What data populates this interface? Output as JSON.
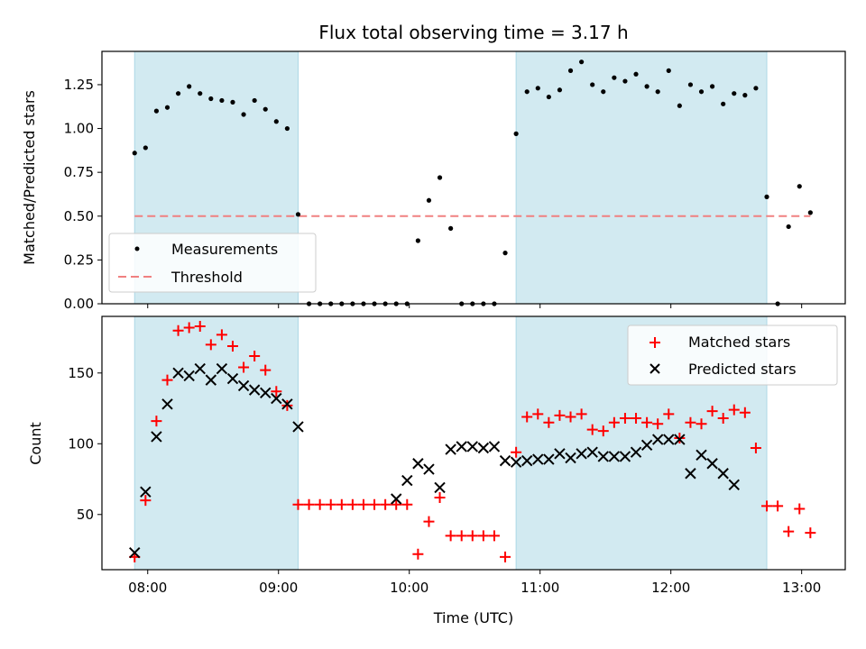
{
  "chart_data": [
    {
      "type": "scatter",
      "title": "Flux total observing time = 3.17 h",
      "xlabel": "",
      "ylabel": "Matched/Predicted stars",
      "ylim": [
        0,
        1.44
      ],
      "yticks": [
        "0.00",
        "0.25",
        "0.50",
        "0.75",
        "1.00",
        "1.25"
      ],
      "threshold": 0.5,
      "legend": {
        "placement": "lower-left",
        "entries": [
          "Measurements",
          "Threshold"
        ]
      },
      "colors": {
        "measurements": "#000000",
        "threshold": "#f08080",
        "shade": "#add8e6"
      },
      "series": [
        {
          "name": "Measurements",
          "x": [
            "07:54",
            "07:59",
            "08:04",
            "08:09",
            "08:14",
            "08:19",
            "08:24",
            "08:29",
            "08:34",
            "08:39",
            "08:44",
            "08:49",
            "08:54",
            "08:59",
            "09:04",
            "09:09",
            "09:14",
            "09:19",
            "09:24",
            "09:29",
            "09:34",
            "09:39",
            "09:44",
            "09:49",
            "09:54",
            "09:59",
            "10:04",
            "10:09",
            "10:14",
            "10:19",
            "10:24",
            "10:29",
            "10:34",
            "10:39",
            "10:44",
            "10:49",
            "10:54",
            "10:59",
            "11:04",
            "11:09",
            "11:14",
            "11:19",
            "11:24",
            "11:29",
            "11:34",
            "11:39",
            "11:44",
            "11:49",
            "11:54",
            "11:59",
            "12:04",
            "12:09",
            "12:14",
            "12:19",
            "12:24",
            "12:29",
            "12:34",
            "12:39",
            "12:44",
            "12:49",
            "12:54",
            "12:59",
            "13:04"
          ],
          "values": [
            0.86,
            0.89,
            1.1,
            1.12,
            1.2,
            1.24,
            1.2,
            1.17,
            1.16,
            1.15,
            1.08,
            1.16,
            1.11,
            1.04,
            1.0,
            0.51,
            0,
            0,
            0,
            0,
            0,
            0,
            0,
            0,
            0,
            0,
            0.36,
            0.59,
            0.72,
            0.43,
            0,
            0,
            0,
            0,
            0.29,
            0.97,
            1.21,
            1.23,
            1.18,
            1.22,
            1.33,
            1.38,
            1.25,
            1.21,
            1.29,
            1.27,
            1.31,
            1.24,
            1.21,
            1.33,
            1.13,
            1.25,
            1.21,
            1.24,
            1.14,
            1.2,
            1.19,
            1.23,
            0.61,
            0.0,
            0.44,
            0.67,
            0.52
          ]
        }
      ]
    },
    {
      "type": "scatter",
      "title": "",
      "xlabel": "Time (UTC)",
      "ylabel": "Count",
      "ylim": [
        11,
        190
      ],
      "yticks": [
        "50",
        "100",
        "150"
      ],
      "xticks": [
        "08:00",
        "09:00",
        "10:00",
        "11:00",
        "12:00",
        "13:00"
      ],
      "legend": {
        "placement": "top-right",
        "entries": [
          "Matched stars",
          "Predicted stars"
        ]
      },
      "colors": {
        "matched": "#ff0000",
        "predicted": "#000000",
        "shade": "#add8e6"
      },
      "series": [
        {
          "name": "Matched stars",
          "x": [
            "07:54",
            "07:59",
            "08:04",
            "08:09",
            "08:14",
            "08:19",
            "08:24",
            "08:29",
            "08:34",
            "08:39",
            "08:44",
            "08:49",
            "08:54",
            "08:59",
            "09:04",
            "09:09",
            "09:14",
            "09:19",
            "09:24",
            "09:29",
            "09:34",
            "09:39",
            "09:44",
            "09:49",
            "09:54",
            "09:59",
            "10:04",
            "10:09",
            "10:14",
            "10:19",
            "10:24",
            "10:29",
            "10:34",
            "10:39",
            "10:44",
            "10:49",
            "10:54",
            "10:59",
            "11:04",
            "11:09",
            "11:14",
            "11:19",
            "11:24",
            "11:29",
            "11:34",
            "11:39",
            "11:44",
            "11:49",
            "11:54",
            "11:59",
            "12:04",
            "12:09",
            "12:14",
            "12:19",
            "12:24",
            "12:29",
            "12:34",
            "12:39",
            "12:44",
            "12:49",
            "12:54",
            "12:59",
            "13:04"
          ],
          "values": [
            20,
            60,
            116,
            145,
            180,
            182,
            183,
            170,
            177,
            169,
            154,
            162,
            152,
            137,
            127,
            57,
            57,
            57,
            57,
            57,
            57,
            57,
            57,
            57,
            57,
            57,
            22,
            45,
            62,
            35,
            35,
            35,
            35,
            35,
            20,
            94,
            119,
            121,
            115,
            120,
            119,
            121,
            110,
            109,
            115,
            118,
            118,
            115,
            114,
            121,
            104,
            115,
            114,
            123,
            118,
            124,
            122,
            97,
            56,
            56,
            38,
            54,
            37
          ]
        },
        {
          "name": "Predicted stars",
          "x": [
            "07:54",
            "07:59",
            "08:04",
            "08:09",
            "08:14",
            "08:19",
            "08:24",
            "08:29",
            "08:34",
            "08:39",
            "08:44",
            "08:49",
            "08:54",
            "08:59",
            "09:04",
            "09:09",
            "09:54",
            "09:59",
            "10:04",
            "10:09",
            "10:14",
            "10:19",
            "10:24",
            "10:29",
            "10:34",
            "10:39",
            "10:44",
            "10:49",
            "10:54",
            "10:59",
            "11:04",
            "11:09",
            "11:14",
            "11:19",
            "11:24",
            "11:29",
            "11:34",
            "11:39",
            "11:44",
            "11:49",
            "11:54",
            "11:59",
            "12:04",
            "12:09",
            "12:14",
            "12:19",
            "12:24",
            "12:29",
            "12:34",
            "12:39",
            "12:44",
            "12:49",
            "12:54",
            "12:59",
            "13:04"
          ],
          "values": [
            23,
            66,
            105,
            128,
            150,
            148,
            153,
            145,
            153,
            146,
            141,
            138,
            136,
            132,
            128,
            112,
            61,
            74,
            86,
            82,
            69,
            96,
            98,
            98,
            97,
            98,
            88,
            87,
            88,
            89,
            89,
            93,
            90,
            93,
            94,
            91,
            91,
            91,
            94,
            99,
            103,
            103,
            103,
            79,
            92,
            86,
            79,
            71,
            null,
            null,
            null,
            null,
            null,
            null,
            null
          ]
        }
      ]
    }
  ],
  "shaded_intervals": [
    [
      "07:54",
      "09:09"
    ],
    [
      "10:49",
      "12:44"
    ]
  ],
  "x_range": [
    "07:39",
    "13:20"
  ]
}
